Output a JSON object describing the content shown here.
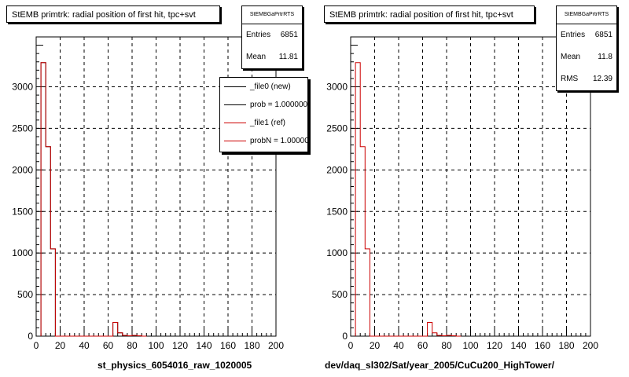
{
  "pads": [
    {
      "title": "StEMB primtrk: radial position of first hit, tpc+svt",
      "stats": {
        "name": "StEMBGaPrtrRTS",
        "rows": [
          {
            "label": "Entries",
            "value": "6851"
          },
          {
            "label": "Mean",
            "value": "11.81"
          }
        ]
      },
      "xlabel": "st_physics_6054016_raw_1020005",
      "legend": [
        {
          "text": "_file0 (new)",
          "color": "#000000"
        },
        {
          "text": "prob = 1.000000",
          "color": "#000000"
        },
        {
          "text": "_file1 (ref)",
          "color": "#cc0000"
        },
        {
          "text": "probN = 1.000000",
          "color": "#cc0000"
        }
      ]
    },
    {
      "title": "StEMB primtrk: radial position of first hit, tpc+svt",
      "stats": {
        "name": "StEMBGaPrtrRTS",
        "rows": [
          {
            "label": "Entries",
            "value": "6851"
          },
          {
            "label": "Mean",
            "value": "11.8"
          },
          {
            "label": "RMS",
            "value": "12.39"
          }
        ]
      },
      "xlabel": "dev/daq_sl302/Sat/year_2005/CuCu200_HighTower/",
      "legend": []
    }
  ],
  "chart_data": [
    {
      "type": "histogram",
      "title": "StEMB primtrk: radial position of first hit, tpc+svt",
      "xlabel": "st_physics_6054016_raw_1020005",
      "ylabel": "",
      "xlim": [
        0,
        200
      ],
      "ylim": [
        0,
        3600
      ],
      "xticks": [
        0,
        20,
        40,
        60,
        80,
        100,
        120,
        140,
        160,
        180,
        200
      ],
      "yticks": [
        0,
        500,
        1000,
        1500,
        2000,
        2500,
        3000
      ],
      "grid": true,
      "bin_width": 4,
      "series": [
        {
          "name": "_file0 (new)",
          "color": "#000000",
          "bin_edges": [
            4,
            8,
            12,
            16,
            20,
            64,
            68,
            72,
            76,
            80,
            84,
            88,
            92
          ],
          "values": [
            3290,
            2280,
            1050,
            0,
            0,
            165,
            40,
            10,
            5,
            10,
            5,
            0
          ]
        },
        {
          "name": "_file1 (ref)",
          "color": "#cc0000",
          "bin_edges": [
            4,
            8,
            12,
            16,
            20,
            64,
            68,
            72,
            76,
            80,
            84,
            88,
            92
          ],
          "values": [
            3290,
            2280,
            1050,
            0,
            0,
            165,
            40,
            10,
            5,
            10,
            5,
            0
          ]
        }
      ]
    },
    {
      "type": "histogram",
      "title": "StEMB primtrk: radial position of first hit, tpc+svt",
      "xlabel": "dev/daq_sl302/Sat/year_2005/CuCu200_HighTower/",
      "ylabel": "",
      "xlim": [
        0,
        200
      ],
      "ylim": [
        0,
        3600
      ],
      "xticks": [
        0,
        20,
        40,
        60,
        80,
        100,
        120,
        140,
        160,
        180,
        200
      ],
      "yticks": [
        0,
        500,
        1000,
        1500,
        2000,
        2500,
        3000
      ],
      "grid": true,
      "bin_width": 4,
      "series": [
        {
          "color": "#cc0000",
          "bin_edges": [
            4,
            8,
            12,
            16,
            20,
            64,
            68,
            72,
            76,
            80,
            84,
            88,
            92
          ],
          "values": [
            3290,
            2280,
            1050,
            0,
            0,
            165,
            40,
            10,
            5,
            10,
            5,
            0
          ]
        }
      ]
    }
  ]
}
